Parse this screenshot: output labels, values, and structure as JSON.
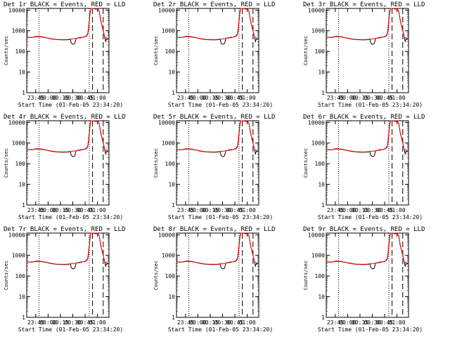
{
  "chart_data": [
    {
      "type": "line",
      "title": "Det 1r BLACK = Events, RED = LLD"
    },
    {
      "type": "line",
      "title": "Det 2r BLACK = Events, RED = LLD"
    },
    {
      "type": "line",
      "title": "Det 3r BLACK = Events, RED = LLD"
    },
    {
      "type": "line",
      "title": "Det 4r BLACK = Events, RED = LLD"
    },
    {
      "type": "line",
      "title": "Det 5r BLACK = Events, RED = LLD"
    },
    {
      "type": "line",
      "title": "Det 6r BLACK = Events, RED = LLD"
    },
    {
      "type": "line",
      "title": "Det 7r BLACK = Events, RED = LLD"
    },
    {
      "type": "line",
      "title": "Det 8r BLACK = Events, RED = LLD"
    },
    {
      "type": "line",
      "title": "Det 9r BLACK = Events, RED = LLD"
    }
  ],
  "shared": {
    "xlabel": "Start Time (01-Feb-05 23:34:20)",
    "ylabel": "Counts/sec",
    "x_tick_labels": [
      "23:45",
      "00:00",
      "00:15",
      "00:30",
      "00:45",
      "01:00"
    ],
    "x_tick_minutes": [
      11,
      26,
      41,
      56,
      71,
      86
    ],
    "y_tick_labels": [
      "1",
      "10",
      "100",
      "1000",
      "10000"
    ],
    "y_tick_values": [
      1,
      10,
      100,
      1000,
      10000
    ],
    "yscale": "log",
    "ylim": [
      1,
      12000
    ],
    "xlim_minutes": [
      0,
      100
    ],
    "x_unit": "minutes since start time",
    "dotted_vlines_minutes": [
      15,
      76
    ],
    "dashed_vlines_minutes": [
      80,
      93
    ],
    "series": [
      {
        "name": "Events",
        "color": "#000000",
        "x": [
          0,
          6,
          12,
          18,
          24,
          30,
          36,
          42,
          48,
          52,
          53,
          54,
          56,
          58,
          59,
          60,
          63,
          66,
          69,
          72,
          74,
          75,
          76,
          77,
          78,
          80,
          81,
          82,
          84,
          86,
          88,
          90,
          93,
          95,
          96,
          97,
          99
        ],
        "y": [
          480,
          470,
          520,
          500,
          450,
          400,
          370,
          360,
          360,
          370,
          400,
          260,
          220,
          230,
          290,
          420,
          450,
          480,
          490,
          520,
          650,
          1100,
          2600,
          7000,
          12000,
          12000,
          11500,
          12000,
          11000,
          12000,
          9000,
          3000,
          1000,
          450,
          300,
          400,
          380
        ]
      },
      {
        "name": "LLD",
        "color": "#ff0000",
        "x": [
          0,
          6,
          12,
          18,
          24,
          30,
          36,
          42,
          48,
          54,
          60,
          66,
          70,
          72,
          74,
          75,
          76,
          77,
          78,
          80,
          82,
          86,
          88,
          90,
          93,
          95,
          97,
          99
        ],
        "y": [
          490,
          470,
          540,
          510,
          460,
          410,
          380,
          370,
          370,
          390,
          420,
          460,
          510,
          540,
          700,
          1300,
          3200,
          8500,
          12000,
          12000,
          12000,
          12000,
          9000,
          3200,
          1000,
          470,
          450,
          420
        ]
      }
    ]
  }
}
